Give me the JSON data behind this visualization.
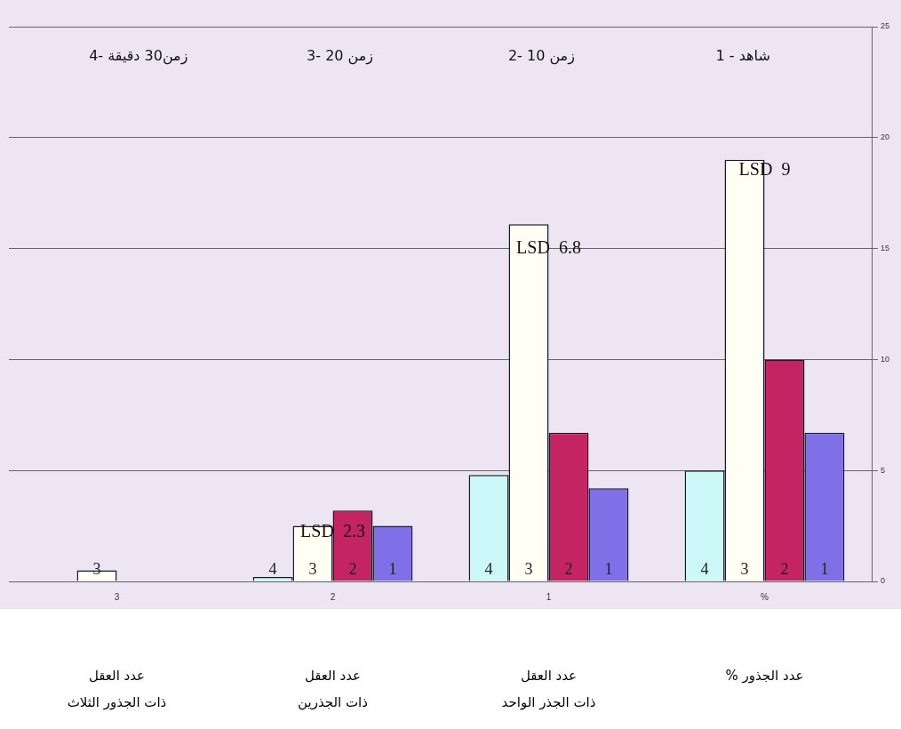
{
  "chart_data": {
    "type": "bar",
    "categories": [
      "3",
      "2",
      "1",
      "%"
    ],
    "series": [
      {
        "name": "4",
        "color": "#ccf8f8",
        "values": [
          null,
          0.2,
          4.8,
          5.0
        ]
      },
      {
        "name": "3",
        "color": "#fffff4",
        "values": [
          0.5,
          2.5,
          16.1,
          19.0
        ]
      },
      {
        "name": "2",
        "color": "#c42462",
        "values": [
          null,
          3.2,
          6.7,
          10.0
        ]
      },
      {
        "name": "1",
        "color": "#8070e8",
        "values": [
          null,
          2.5,
          4.2,
          6.7
        ]
      }
    ],
    "ylim": [
      0,
      25
    ],
    "yticks": [
      0,
      5,
      10,
      15,
      20,
      25
    ],
    "grid": "y",
    "annotations": [
      "4- زمن30 دقيقة",
      "3- زمن 20",
      "2- زمن 10",
      "1 - شاهد",
      "عدد العقل\nذات الجذور الثلاث",
      "عدد العقل\nذات الجذرين",
      "عدد العقل\nذات الجذر الواحد",
      "عدد الجذور %",
      {
        "text": "LSD  2.3",
        "x": "2",
        "y": 2.0
      },
      {
        "text": "LSD  6.8",
        "x": "1",
        "y": 14.8
      },
      {
        "text": "LSD  9",
        "x": "%",
        "y": 18.3
      }
    ]
  }
}
